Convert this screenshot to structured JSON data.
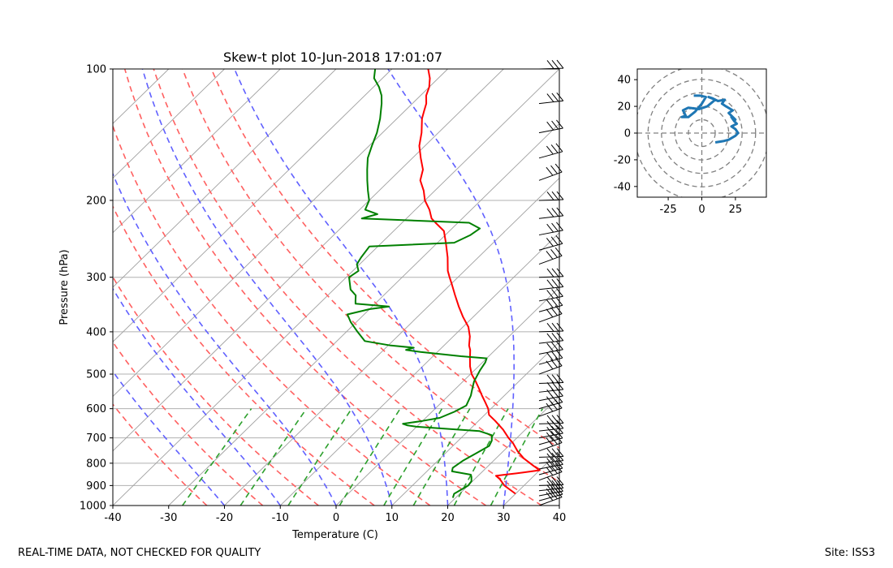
{
  "title": "Skew-t plot 10-Jun-2018 17:01:07",
  "footer": {
    "left": "REAL-TIME DATA, NOT CHECKED FOR QUALITY",
    "right": "Site: ISS3"
  },
  "colors": {
    "temperature": "#ff0000",
    "dewpoint": "#008000",
    "dry_adiabat": "#ff6060",
    "moist_adiabat": "#6060ff",
    "mixing_ratio": "#2ca02c",
    "isotherm": "#a0a0a0",
    "isobar": "#b0b0b0",
    "hodograph": "#1f77b4",
    "barb": "#000000"
  },
  "chart_data": [
    {
      "type": "skewt",
      "title": "Skew-t plot 10-Jun-2018 17:01:07",
      "xlabel": "Temperature (C)",
      "ylabel": "Pressure (hPa)",
      "xlim": [
        -40,
        40
      ],
      "ylim": [
        1000,
        100
      ],
      "y_scale": "log",
      "xticks": [
        -40,
        -30,
        -20,
        -10,
        0,
        10,
        20,
        30,
        40
      ],
      "yticks": [
        1000,
        900,
        800,
        700,
        600,
        500,
        400,
        300,
        200,
        100
      ],
      "grid": true,
      "series": [
        {
          "name": "Temperature",
          "color": "#ff0000",
          "points": [
            [
              940,
              30.0
            ],
            [
              900,
              26.5
            ],
            [
              870,
              24.5
            ],
            [
              855,
              23.2
            ],
            [
              850,
              24.6
            ],
            [
              840,
              27.5
            ],
            [
              830,
              30.0
            ],
            [
              810,
              28.0
            ],
            [
              780,
              25.0
            ],
            [
              750,
              22.5
            ],
            [
              720,
              20.3
            ],
            [
              700,
              18.5
            ],
            [
              670,
              16.0
            ],
            [
              640,
              13.0
            ],
            [
              620,
              10.8
            ],
            [
              600,
              9.5
            ],
            [
              580,
              7.8
            ],
            [
              560,
              6.0
            ],
            [
              540,
              4.2
            ],
            [
              520,
              2.3
            ],
            [
              500,
              0.2
            ],
            [
              480,
              -1.5
            ],
            [
              460,
              -3.0
            ],
            [
              440,
              -4.5
            ],
            [
              430,
              -5.5
            ],
            [
              410,
              -7.0
            ],
            [
              390,
              -9.0
            ],
            [
              370,
              -11.8
            ],
            [
              350,
              -14.5
            ],
            [
              330,
              -17.2
            ],
            [
              310,
              -20.0
            ],
            [
              300,
              -21.5
            ],
            [
              290,
              -23.0
            ],
            [
              270,
              -25.5
            ],
            [
              250,
              -28.5
            ],
            [
              235,
              -31.0
            ],
            [
              225,
              -34.0
            ],
            [
              220,
              -35.5
            ],
            [
              210,
              -37.5
            ],
            [
              200,
              -40.0
            ],
            [
              190,
              -42.0
            ],
            [
              180,
              -44.5
            ],
            [
              170,
              -46.0
            ],
            [
              160,
              -48.5
            ],
            [
              150,
              -51.0
            ],
            [
              140,
              -53.0
            ],
            [
              130,
              -55.5
            ],
            [
              125,
              -56.5
            ],
            [
              120,
              -57.5
            ],
            [
              115,
              -59.0
            ],
            [
              110,
              -60.0
            ],
            [
              105,
              -61.5
            ],
            [
              100,
              -63.5
            ]
          ]
        },
        {
          "name": "Dewpoint",
          "color": "#008000",
          "points": [
            [
              960,
              19.5
            ],
            [
              940,
              19.0
            ],
            [
              920,
              19.5
            ],
            [
              900,
              20.0
            ],
            [
              880,
              19.8
            ],
            [
              860,
              19.0
            ],
            [
              850,
              18.5
            ],
            [
              835,
              14.5
            ],
            [
              820,
              14.0
            ],
            [
              790,
              14.5
            ],
            [
              760,
              15.5
            ],
            [
              730,
              16.5
            ],
            [
              710,
              16.0
            ],
            [
              690,
              15.0
            ],
            [
              675,
              12.0
            ],
            [
              660,
              0.0
            ],
            [
              655,
              -2.0
            ],
            [
              650,
              -3.0
            ],
            [
              640,
              0.0
            ],
            [
              630,
              2.5
            ],
            [
              610,
              4.0
            ],
            [
              590,
              5.0
            ],
            [
              560,
              4.0
            ],
            [
              540,
              3.0
            ],
            [
              520,
              2.0
            ],
            [
              490,
              1.0
            ],
            [
              470,
              0.5
            ],
            [
              460,
              0.0
            ],
            [
              455,
              -5.0
            ],
            [
              445,
              -13.0
            ],
            [
              440,
              -16.0
            ],
            [
              435,
              -15.0
            ],
            [
              430,
              -19.5
            ],
            [
              420,
              -25.0
            ],
            [
              400,
              -28.0
            ],
            [
              380,
              -31.0
            ],
            [
              365,
              -33.0
            ],
            [
              355,
              -30.0
            ],
            [
              350,
              -27.0
            ],
            [
              345,
              -33.5
            ],
            [
              340,
              -34.0
            ],
            [
              330,
              -35.0
            ],
            [
              320,
              -37.0
            ],
            [
              300,
              -39.5
            ],
            [
              290,
              -39.0
            ],
            [
              280,
              -40.5
            ],
            [
              270,
              -41.0
            ],
            [
              255,
              -41.5
            ],
            [
              250,
              -27.0
            ],
            [
              240,
              -25.5
            ],
            [
              232,
              -25.0
            ],
            [
              225,
              -28.0
            ],
            [
              220,
              -48.0
            ],
            [
              215,
              -46.0
            ],
            [
              210,
              -49.0
            ],
            [
              200,
              -50.0
            ],
            [
              190,
              -52.0
            ],
            [
              180,
              -54.0
            ],
            [
              170,
              -56.0
            ],
            [
              160,
              -58.0
            ],
            [
              150,
              -59.5
            ],
            [
              140,
              -61.0
            ],
            [
              130,
              -63.0
            ],
            [
              120,
              -65.5
            ],
            [
              115,
              -67.0
            ],
            [
              110,
              -69.0
            ],
            [
              105,
              -71.5
            ],
            [
              100,
              -73.0
            ]
          ]
        }
      ],
      "dry_adiabats_theta_K": [
        250,
        260,
        270,
        280,
        290,
        300,
        310,
        320,
        330
      ],
      "moist_adiabats_base_T_C": [
        -20,
        -10,
        0,
        10,
        20,
        30,
        40
      ],
      "mixing_ratio_lines_gkg": [
        0.4,
        1,
        2,
        4,
        7,
        10,
        16,
        24
      ],
      "mixing_ratio_top_hPa": 600,
      "wind_barb_pressures_hPa": [
        1000,
        975,
        950,
        925,
        900,
        875,
        850,
        825,
        800,
        775,
        750,
        725,
        700,
        675,
        650,
        625,
        600,
        575,
        550,
        525,
        500,
        475,
        450,
        425,
        400,
        380,
        360,
        340,
        320,
        300,
        280,
        260,
        240,
        220,
        200,
        180,
        160,
        140,
        120,
        100
      ]
    },
    {
      "type": "hodograph",
      "xlim": [
        -48,
        48
      ],
      "ylim": [
        -48,
        48
      ],
      "xticks": [
        -25,
        0,
        25
      ],
      "yticks": [
        40,
        20,
        0,
        -20,
        -40
      ],
      "rings": [
        10,
        20,
        30,
        40,
        50
      ],
      "series": [
        {
          "name": "",
          "color": "#1f77b4",
          "points": [
            [
              10,
              -7
            ],
            [
              16,
              -6
            ],
            [
              20,
              -5
            ],
            [
              25,
              -2
            ],
            [
              27,
              0
            ],
            [
              25,
              3
            ],
            [
              22,
              5
            ],
            [
              26,
              7
            ],
            [
              24,
              9
            ],
            [
              22,
              12
            ],
            [
              25,
              10
            ],
            [
              20,
              15
            ],
            [
              23,
              17
            ],
            [
              18,
              20
            ],
            [
              15,
              22
            ],
            [
              17,
              25
            ],
            [
              12,
              24
            ],
            [
              8,
              26
            ],
            [
              5,
              27
            ],
            [
              10,
              25
            ],
            [
              4,
              20
            ],
            [
              -2,
              18
            ],
            [
              -10,
              19
            ],
            [
              -14,
              17
            ],
            [
              -12,
              13
            ],
            [
              -15,
              12
            ],
            [
              -10,
              12
            ],
            [
              -5,
              16
            ],
            [
              0,
              22
            ],
            [
              3,
              27
            ],
            [
              -1,
              28
            ],
            [
              -6,
              28
            ]
          ]
        }
      ]
    }
  ]
}
